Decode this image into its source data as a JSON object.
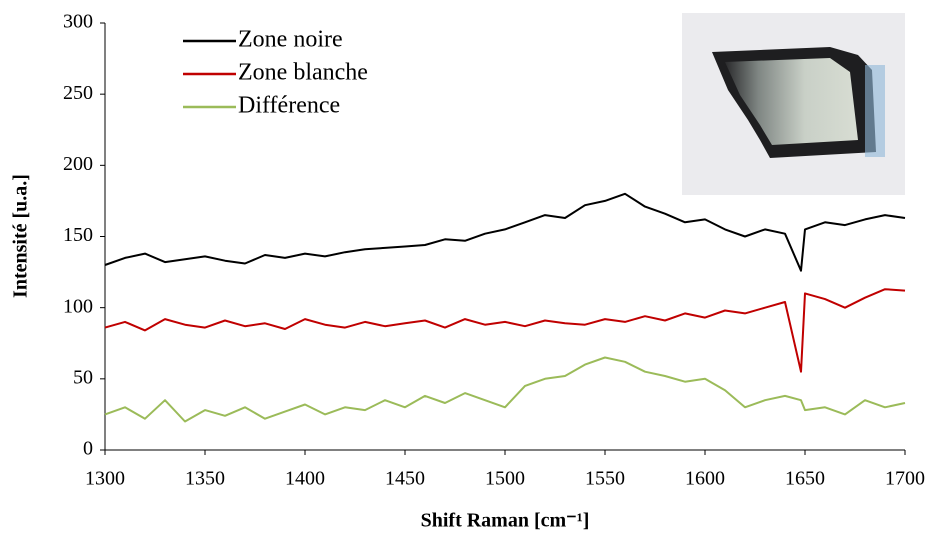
{
  "chart_data": {
    "type": "line",
    "xlabel": "Shift Raman [cm⁻¹]",
    "ylabel": "Intensité [u.a.]",
    "x": [
      1300,
      1310,
      1320,
      1330,
      1340,
      1350,
      1360,
      1370,
      1380,
      1390,
      1400,
      1410,
      1420,
      1430,
      1440,
      1450,
      1460,
      1470,
      1480,
      1490,
      1500,
      1510,
      1520,
      1530,
      1540,
      1550,
      1560,
      1570,
      1580,
      1590,
      1600,
      1610,
      1620,
      1630,
      1640,
      1648,
      1650,
      1660,
      1670,
      1680,
      1690,
      1700
    ],
    "series": [
      {
        "name": "Zone noire",
        "color": "#000000",
        "values": [
          130,
          135,
          138,
          132,
          134,
          136,
          133,
          131,
          137,
          135,
          138,
          136,
          139,
          141,
          142,
          143,
          144,
          148,
          147,
          152,
          155,
          160,
          165,
          163,
          172,
          175,
          180,
          171,
          166,
          160,
          162,
          155,
          150,
          155,
          152,
          126,
          155,
          160,
          158,
          162,
          165,
          163
        ]
      },
      {
        "name": "Zone blanche",
        "color": "#c00000",
        "values": [
          86,
          90,
          84,
          92,
          88,
          86,
          91,
          87,
          89,
          85,
          92,
          88,
          86,
          90,
          87,
          89,
          91,
          86,
          92,
          88,
          90,
          87,
          91,
          89,
          88,
          92,
          90,
          94,
          91,
          96,
          93,
          98,
          96,
          100,
          104,
          55,
          110,
          106,
          100,
          107,
          113,
          112
        ]
      },
      {
        "name": "Différence",
        "color": "#9bbb59",
        "values": [
          25,
          30,
          22,
          35,
          20,
          28,
          24,
          30,
          22,
          27,
          32,
          25,
          30,
          28,
          35,
          30,
          38,
          33,
          40,
          35,
          30,
          45,
          50,
          52,
          60,
          65,
          62,
          55,
          52,
          48,
          50,
          42,
          30,
          35,
          38,
          35,
          28,
          30,
          25,
          35,
          30,
          33
        ]
      }
    ],
    "xlim": [
      1300,
      1700
    ],
    "xticks": [
      1300,
      1350,
      1400,
      1450,
      1500,
      1550,
      1600,
      1650,
      1700
    ],
    "ylim": [
      0,
      300
    ],
    "yticks": [
      0,
      50,
      100,
      150,
      200,
      250,
      300
    ],
    "grid": false,
    "legend": "upper left"
  }
}
